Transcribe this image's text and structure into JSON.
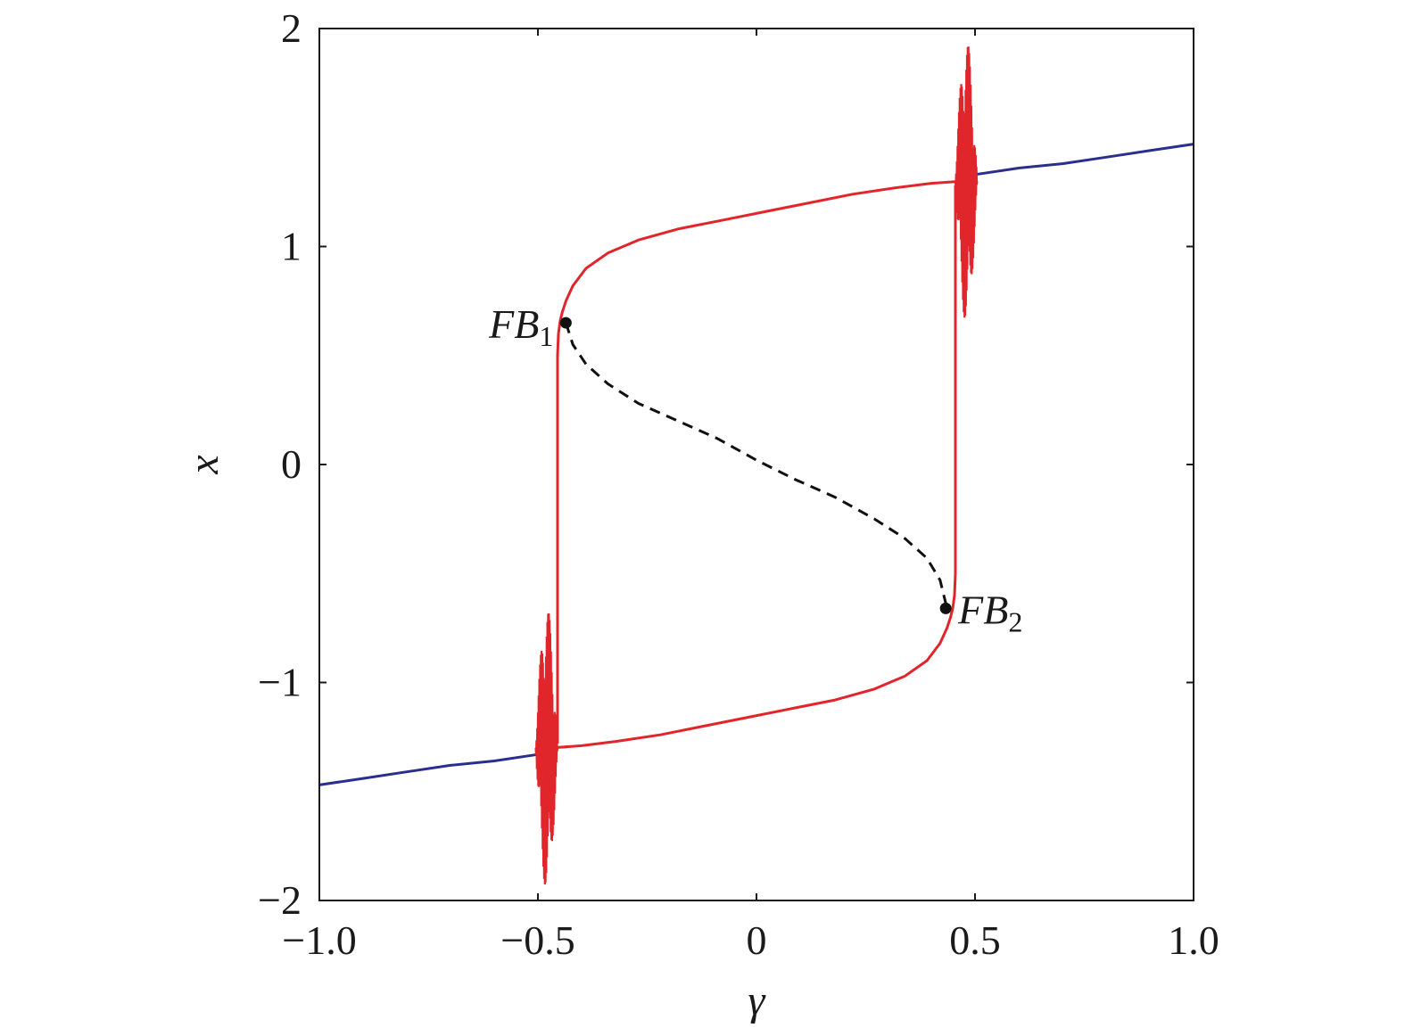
{
  "chart_data": {
    "type": "line",
    "title": "",
    "xlabel": "γ",
    "ylabel": "x",
    "xlim": [
      -1.0,
      1.0
    ],
    "ylim": [
      -2,
      2
    ],
    "xticks": [
      -1.0,
      -0.5,
      0,
      0.5,
      1.0
    ],
    "xtick_labels": [
      "−1.0",
      "−0.5",
      "0",
      "0.5",
      "1.0"
    ],
    "yticks": [
      -2,
      -1,
      0,
      1,
      2
    ],
    "ytick_labels": [
      "−2",
      "−1",
      "0",
      "1",
      "2"
    ],
    "grid": false,
    "series": [
      {
        "style": "solid",
        "color": "#2b2f8c",
        "segments": [
          {
            "x": [
              -1.0,
              -0.9,
              -0.8,
              -0.7,
              -0.6,
              -0.5
            ],
            "y": [
              -1.47,
              -1.44,
              -1.41,
              -1.38,
              -1.36,
              -1.33
            ]
          },
          {
            "x": [
              0.5,
              0.6,
              0.7,
              0.8,
              0.9,
              1.0
            ],
            "y": [
              1.33,
              1.36,
              1.38,
              1.41,
              1.44,
              1.47
            ]
          }
        ]
      },
      {
        "style": "solid",
        "color": "#e0262b",
        "segments": [
          {
            "x": [
              -0.455,
              -0.455,
              -0.453,
              -0.449,
              -0.444,
              -0.436,
              -0.42,
              -0.39,
              -0.34,
              -0.27,
              -0.18,
              -0.08,
              0.02,
              0.12,
              0.22,
              0.32,
              0.4,
              0.47
            ],
            "y": [
              -1.28,
              0.5,
              0.6,
              0.66,
              0.7,
              0.75,
              0.82,
              0.9,
              0.97,
              1.03,
              1.08,
              1.12,
              1.16,
              1.2,
              1.24,
              1.27,
              1.29,
              1.3
            ]
          },
          {
            "x": [
              0.455,
              0.455,
              0.453,
              0.449,
              0.444,
              0.436,
              0.42,
              0.39,
              0.34,
              0.27,
              0.18,
              0.08,
              -0.02,
              -0.12,
              -0.22,
              -0.32,
              -0.4,
              -0.47
            ],
            "y": [
              1.28,
              -0.5,
              -0.6,
              -0.66,
              -0.7,
              -0.75,
              -0.82,
              -0.9,
              -0.97,
              -1.03,
              -1.08,
              -1.12,
              -1.16,
              -1.2,
              -1.24,
              -1.27,
              -1.29,
              -1.3
            ]
          }
        ],
        "oscillation_bands": [
          {
            "x": [
              0.455,
              0.505
            ],
            "y_center": 1.3,
            "amplitude": 0.65
          },
          {
            "x": [
              -0.505,
              -0.455
            ],
            "y_center": -1.3,
            "amplitude": 0.65
          }
        ]
      },
      {
        "style": "dashed",
        "color": "#111111",
        "segments": [
          {
            "x": [
              -0.436,
              -0.42,
              -0.39,
              -0.34,
              -0.27,
              -0.18,
              -0.09,
              0.0,
              0.09,
              0.18,
              0.27,
              0.34,
              0.39,
              0.42,
              0.436
            ],
            "y": [
              0.65,
              0.55,
              0.46,
              0.37,
              0.28,
              0.2,
              0.12,
              0.02,
              -0.07,
              -0.15,
              -0.25,
              -0.34,
              -0.43,
              -0.53,
              -0.66
            ]
          }
        ]
      }
    ],
    "points": [
      {
        "x": -0.436,
        "y": 0.65,
        "label": "FB",
        "sub": "1"
      },
      {
        "x": 0.433,
        "y": -0.66,
        "label": "FB",
        "sub": "2"
      }
    ]
  }
}
